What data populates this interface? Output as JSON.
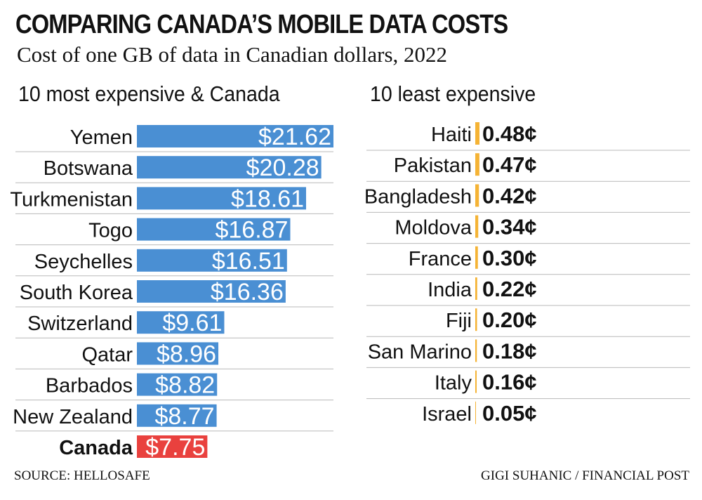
{
  "header": {
    "title": "COMPARING CANADA’S MOBILE DATA COSTS",
    "subtitle": "Cost of one GB of data in Canadian dollars, 2022"
  },
  "footer": {
    "source": "SOURCE: HELLOSAFE",
    "credit": "GIGI SUHANIC / FINANCIAL POST"
  },
  "colors": {
    "expensive_bar": "#4a8fd3",
    "canada_bar": "#e9413e",
    "canada_label": "#e9413e",
    "cheap_bar": "#f5b335",
    "divider": "#b8b8b8"
  },
  "chart_data": [
    {
      "type": "bar",
      "orientation": "horizontal",
      "title": "10 most expensive & Canada",
      "categories": [
        "Yemen",
        "Botswana",
        "Turkmenistan",
        "Togo",
        "Seychelles",
        "South Korea",
        "Switzerland",
        "Qatar",
        "Barbados",
        "New Zealand",
        "Canada"
      ],
      "values": [
        21.62,
        20.28,
        18.61,
        16.87,
        16.51,
        16.36,
        9.61,
        8.96,
        8.82,
        8.77,
        7.75
      ],
      "labels": [
        "$21.62",
        "$20.28",
        "$18.61",
        "$16.87",
        "$16.51",
        "$16.36",
        "$9.61",
        "$8.96",
        "$8.82",
        "$8.77",
        "$7.75"
      ],
      "highlight": "Canada",
      "unit": "CAD",
      "xlim": [
        0,
        21.62
      ],
      "grid": false,
      "legend": "none"
    },
    {
      "type": "bar",
      "orientation": "horizontal",
      "title": "10 least expensive",
      "categories": [
        "Haiti",
        "Pakistan",
        "Bangladesh",
        "Moldova",
        "France",
        "India",
        "Fiji",
        "San Marino",
        "Italy",
        "Israel"
      ],
      "values": [
        0.48,
        0.47,
        0.42,
        0.34,
        0.3,
        0.22,
        0.2,
        0.18,
        0.16,
        0.05
      ],
      "labels": [
        "0.48¢",
        "0.47¢",
        "0.42¢",
        "0.34¢",
        "0.30¢",
        "0.22¢",
        "0.20¢",
        "0.18¢",
        "0.16¢",
        "0.05¢"
      ],
      "unit": "cents",
      "xlim": [
        0,
        0.48
      ],
      "grid": false,
      "legend": "none"
    }
  ]
}
